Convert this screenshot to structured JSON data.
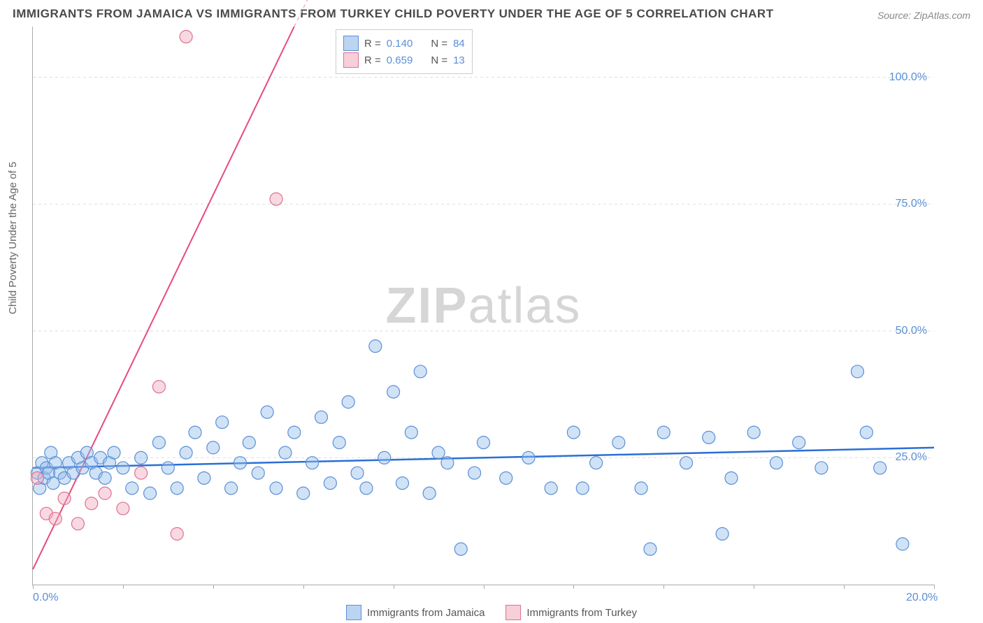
{
  "title": "IMMIGRANTS FROM JAMAICA VS IMMIGRANTS FROM TURKEY CHILD POVERTY UNDER THE AGE OF 5 CORRELATION CHART",
  "source": "Source: ZipAtlas.com",
  "ylabel": "Child Poverty Under the Age of 5",
  "watermark_bold": "ZIP",
  "watermark_rest": "atlas",
  "chart": {
    "type": "scatter",
    "xlim": [
      0,
      20
    ],
    "ylim": [
      0,
      110
    ],
    "x_ticks": [
      0,
      2,
      4,
      6,
      8,
      10,
      12,
      14,
      16,
      18,
      20
    ],
    "x_tick_labels": {
      "0": "0.0%",
      "20": "20.0%"
    },
    "y_ticks": [
      25,
      50,
      75,
      100
    ],
    "y_tick_labels": {
      "25": "25.0%",
      "50": "50.0%",
      "75": "75.0%",
      "100": "100.0%"
    },
    "background_color": "#ffffff",
    "grid_color": "#dddddd",
    "axis_color": "#aaaaaa",
    "tick_label_color": "#5a8fd6",
    "marker_radius": 9,
    "marker_stroke_width": 1.2,
    "series": [
      {
        "name": "Immigrants from Jamaica",
        "color_fill": "rgba(150,190,235,0.45)",
        "color_stroke": "#5a8fd6",
        "r_value": "0.140",
        "n_value": "84",
        "trend": {
          "x1": 0,
          "y1": 23,
          "x2": 20,
          "y2": 27,
          "color": "#2a6fd6",
          "width": 2.5,
          "dash": "none"
        },
        "points": [
          [
            0.1,
            22
          ],
          [
            0.15,
            19
          ],
          [
            0.2,
            24
          ],
          [
            0.25,
            21
          ],
          [
            0.3,
            23
          ],
          [
            0.35,
            22
          ],
          [
            0.4,
            26
          ],
          [
            0.45,
            20
          ],
          [
            0.5,
            24
          ],
          [
            0.6,
            22
          ],
          [
            0.7,
            21
          ],
          [
            0.8,
            24
          ],
          [
            0.9,
            22
          ],
          [
            1.0,
            25
          ],
          [
            1.1,
            23
          ],
          [
            1.2,
            26
          ],
          [
            1.3,
            24
          ],
          [
            1.4,
            22
          ],
          [
            1.5,
            25
          ],
          [
            1.6,
            21
          ],
          [
            1.7,
            24
          ],
          [
            1.8,
            26
          ],
          [
            2.0,
            23
          ],
          [
            2.2,
            19
          ],
          [
            2.4,
            25
          ],
          [
            2.6,
            18
          ],
          [
            2.8,
            28
          ],
          [
            3.0,
            23
          ],
          [
            3.2,
            19
          ],
          [
            3.4,
            26
          ],
          [
            3.6,
            30
          ],
          [
            3.8,
            21
          ],
          [
            4.0,
            27
          ],
          [
            4.2,
            32
          ],
          [
            4.4,
            19
          ],
          [
            4.6,
            24
          ],
          [
            4.8,
            28
          ],
          [
            5.0,
            22
          ],
          [
            5.2,
            34
          ],
          [
            5.4,
            19
          ],
          [
            5.6,
            26
          ],
          [
            5.8,
            30
          ],
          [
            6.0,
            18
          ],
          [
            6.2,
            24
          ],
          [
            6.4,
            33
          ],
          [
            6.6,
            20
          ],
          [
            6.8,
            28
          ],
          [
            7.0,
            36
          ],
          [
            7.2,
            22
          ],
          [
            7.4,
            19
          ],
          [
            7.6,
            47
          ],
          [
            7.8,
            25
          ],
          [
            8.0,
            38
          ],
          [
            8.2,
            20
          ],
          [
            8.4,
            30
          ],
          [
            8.6,
            42
          ],
          [
            8.8,
            18
          ],
          [
            9.0,
            26
          ],
          [
            9.2,
            24
          ],
          [
            9.5,
            7
          ],
          [
            9.8,
            22
          ],
          [
            10.0,
            28
          ],
          [
            10.5,
            21
          ],
          [
            11.0,
            25
          ],
          [
            11.5,
            19
          ],
          [
            12.0,
            30
          ],
          [
            12.2,
            19
          ],
          [
            12.5,
            24
          ],
          [
            13.0,
            28
          ],
          [
            13.5,
            19
          ],
          [
            13.7,
            7
          ],
          [
            14.0,
            30
          ],
          [
            14.5,
            24
          ],
          [
            15.0,
            29
          ],
          [
            15.3,
            10
          ],
          [
            15.5,
            21
          ],
          [
            16.0,
            30
          ],
          [
            16.5,
            24
          ],
          [
            17.0,
            28
          ],
          [
            17.5,
            23
          ],
          [
            18.3,
            42
          ],
          [
            18.5,
            30
          ],
          [
            18.8,
            23
          ],
          [
            19.3,
            8
          ]
        ]
      },
      {
        "name": "Immigrants from Turkey",
        "color_fill": "rgba(240,170,190,0.45)",
        "color_stroke": "#e07090",
        "r_value": "0.659",
        "n_value": "13",
        "trend": {
          "x1": 0,
          "y1": 3,
          "x2": 5.8,
          "y2": 110,
          "color": "#e84a7a",
          "width": 2,
          "dash": "none",
          "dash_ext": {
            "x1": 5.8,
            "y1": 110,
            "color": "#f0b0c0"
          }
        },
        "points": [
          [
            0.1,
            21
          ],
          [
            0.3,
            14
          ],
          [
            0.5,
            13
          ],
          [
            0.7,
            17
          ],
          [
            1.0,
            12
          ],
          [
            1.3,
            16
          ],
          [
            1.6,
            18
          ],
          [
            2.0,
            15
          ],
          [
            2.4,
            22
          ],
          [
            2.8,
            39
          ],
          [
            3.2,
            10
          ],
          [
            3.4,
            108
          ],
          [
            5.4,
            76
          ]
        ]
      }
    ]
  },
  "legend": {
    "r_label": "R =",
    "n_label": "N ="
  },
  "bottom_legend": {
    "series1": "Immigrants from Jamaica",
    "series2": "Immigrants from Turkey"
  }
}
